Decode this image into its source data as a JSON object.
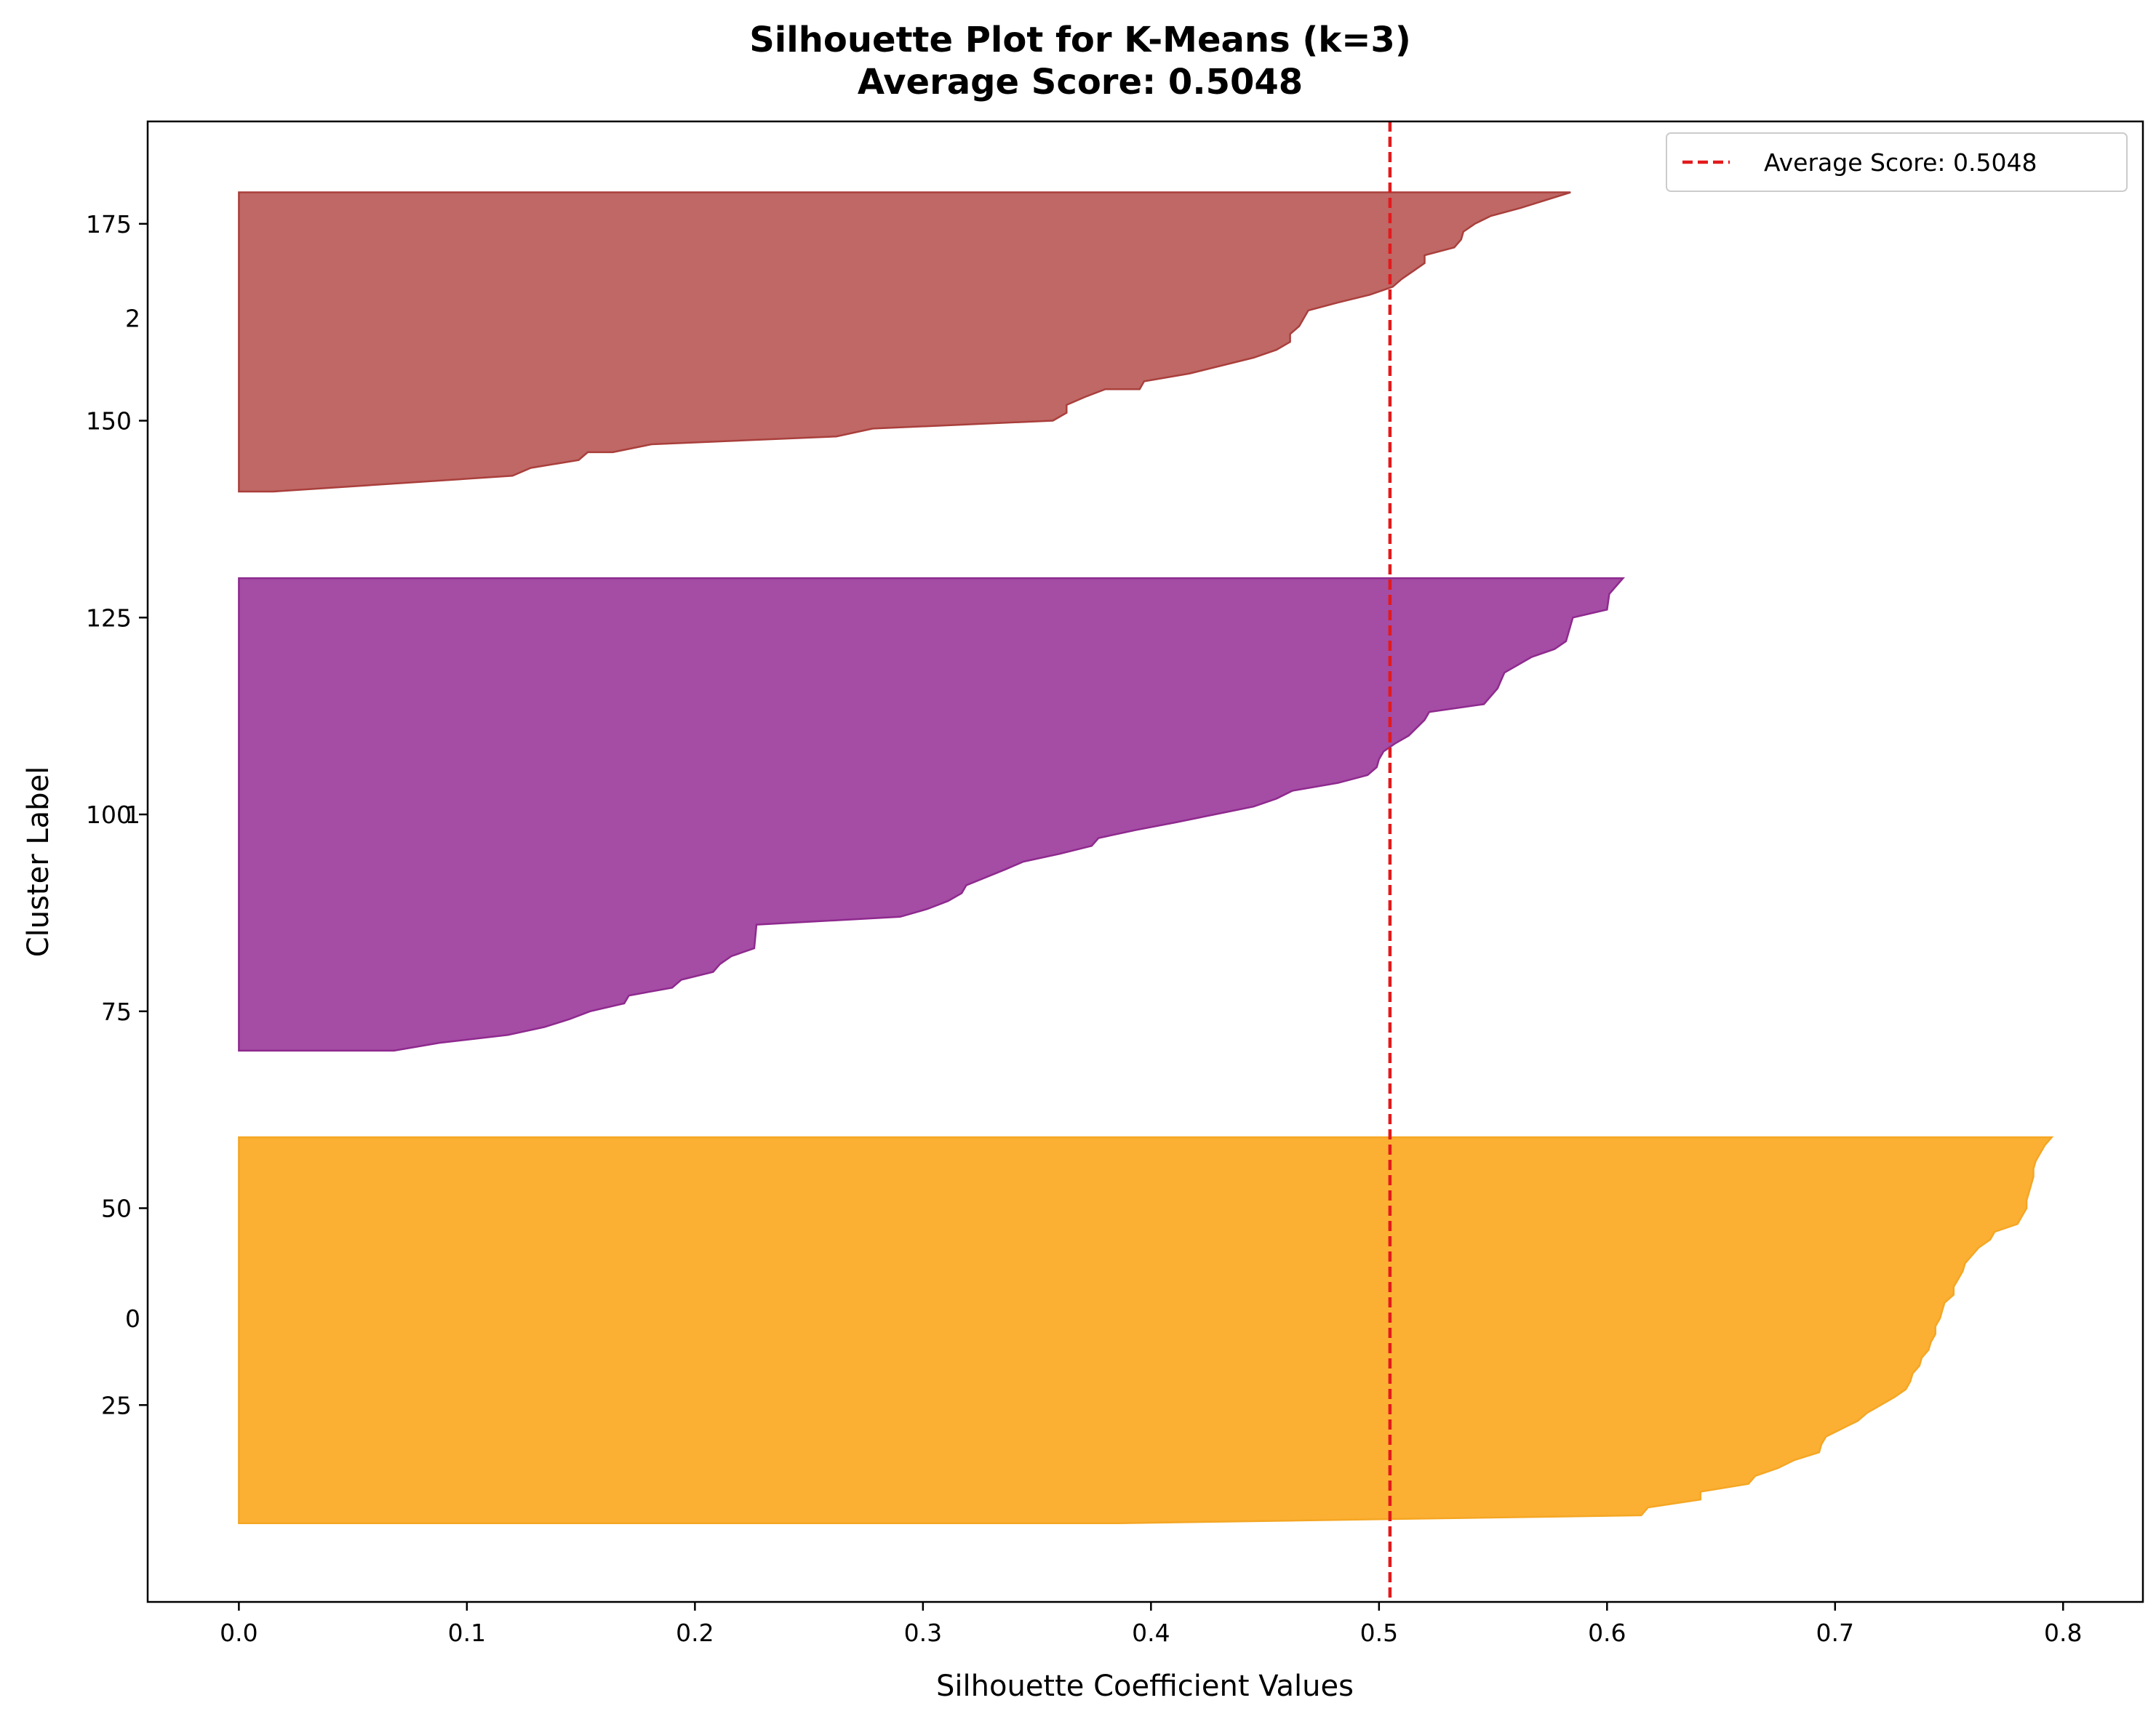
{
  "chart_data": {
    "type": "area",
    "title": "Silhouette Plot for K-Means (k=3)",
    "subtitle": "Average Score: 0.5048",
    "xlabel": "Silhouette Coefficient Values",
    "ylabel": "Cluster Label",
    "xlim": [
      -0.04,
      0.835
    ],
    "ylim": [
      0,
      188
    ],
    "xticks": [
      0.0,
      0.1,
      0.2,
      0.3,
      0.4,
      0.5,
      0.6,
      0.7,
      0.8
    ],
    "xtick_labels": [
      "0.0",
      "0.1",
      "0.2",
      "0.3",
      "0.4",
      "0.5",
      "0.6",
      "0.7",
      "0.8"
    ],
    "yticks": [
      25,
      50,
      75,
      100,
      125,
      150,
      175
    ],
    "ytick_labels": [
      "25",
      "50",
      "75",
      "100",
      "125",
      "150",
      "175"
    ],
    "average_score": 0.5048,
    "average_line_color": "#e31a1c",
    "legend": {
      "label": "Average Score: 0.5048",
      "position": "top-right"
    },
    "grid": false,
    "clusters": [
      {
        "label": "0",
        "label_y": 36,
        "y_start": 10,
        "y_end": 59,
        "color": "#fbb034",
        "edge": "#f5a623",
        "points": [
          [
            0.386,
            10
          ],
          [
            0.615,
            11
          ],
          [
            0.618,
            12
          ],
          [
            0.641,
            13
          ],
          [
            0.641,
            14
          ],
          [
            0.662,
            15
          ],
          [
            0.665,
            16
          ],
          [
            0.675,
            17
          ],
          [
            0.682,
            18
          ],
          [
            0.693,
            19
          ],
          [
            0.694,
            20
          ],
          [
            0.696,
            21
          ],
          [
            0.703,
            22
          ],
          [
            0.71,
            23
          ],
          [
            0.714,
            24
          ],
          [
            0.72,
            25
          ],
          [
            0.726,
            26
          ],
          [
            0.731,
            27
          ],
          [
            0.733,
            28
          ],
          [
            0.734,
            29
          ],
          [
            0.737,
            30
          ],
          [
            0.738,
            31
          ],
          [
            0.741,
            32
          ],
          [
            0.742,
            33
          ],
          [
            0.744,
            34
          ],
          [
            0.744,
            35
          ],
          [
            0.746,
            36
          ],
          [
            0.747,
            37
          ],
          [
            0.748,
            38
          ],
          [
            0.752,
            39
          ],
          [
            0.752,
            40
          ],
          [
            0.754,
            41
          ],
          [
            0.756,
            42
          ],
          [
            0.757,
            43
          ],
          [
            0.76,
            44
          ],
          [
            0.763,
            45
          ],
          [
            0.768,
            46
          ],
          [
            0.77,
            47
          ],
          [
            0.78,
            48
          ],
          [
            0.782,
            49
          ],
          [
            0.784,
            50
          ],
          [
            0.784,
            51
          ],
          [
            0.785,
            52
          ],
          [
            0.786,
            53
          ],
          [
            0.787,
            54
          ],
          [
            0.787,
            55
          ],
          [
            0.788,
            56
          ],
          [
            0.79,
            57
          ],
          [
            0.792,
            58
          ],
          [
            0.795,
            59
          ]
        ]
      },
      {
        "label": "1",
        "label_y": 100,
        "y_start": 70,
        "y_end": 130,
        "color": "#a54ca5",
        "edge": "#8e2a8e",
        "points": [
          [
            0.068,
            70
          ],
          [
            0.088,
            71
          ],
          [
            0.118,
            72
          ],
          [
            0.134,
            73
          ],
          [
            0.145,
            74
          ],
          [
            0.154,
            75
          ],
          [
            0.169,
            76
          ],
          [
            0.171,
            77
          ],
          [
            0.19,
            78
          ],
          [
            0.194,
            79
          ],
          [
            0.208,
            80
          ],
          [
            0.211,
            81
          ],
          [
            0.216,
            82
          ],
          [
            0.226,
            83
          ],
          [
            0.227,
            86
          ],
          [
            0.29,
            87
          ],
          [
            0.302,
            88
          ],
          [
            0.311,
            89
          ],
          [
            0.317,
            90
          ],
          [
            0.319,
            91
          ],
          [
            0.336,
            93
          ],
          [
            0.344,
            94
          ],
          [
            0.36,
            95
          ],
          [
            0.374,
            96
          ],
          [
            0.377,
            97
          ],
          [
            0.393,
            98
          ],
          [
            0.411,
            99
          ],
          [
            0.428,
            100
          ],
          [
            0.445,
            101
          ],
          [
            0.455,
            102
          ],
          [
            0.462,
            103
          ],
          [
            0.482,
            104
          ],
          [
            0.495,
            105
          ],
          [
            0.499,
            106
          ],
          [
            0.5,
            107
          ],
          [
            0.502,
            108
          ],
          [
            0.507,
            109
          ],
          [
            0.513,
            110
          ],
          [
            0.52,
            112
          ],
          [
            0.522,
            113
          ],
          [
            0.546,
            114
          ],
          [
            0.552,
            116
          ],
          [
            0.555,
            118
          ],
          [
            0.567,
            120
          ],
          [
            0.577,
            121
          ],
          [
            0.582,
            122
          ],
          [
            0.585,
            125
          ],
          [
            0.6,
            126
          ],
          [
            0.601,
            128
          ],
          [
            0.607,
            130
          ]
        ]
      },
      {
        "label": "2",
        "label_y": 163,
        "y_start": 141,
        "y_end": 179,
        "color": "#bf6866",
        "edge": "#a93f3c",
        "points": [
          [
            0.015,
            141
          ],
          [
            0.12,
            143
          ],
          [
            0.128,
            144
          ],
          [
            0.149,
            145
          ],
          [
            0.153,
            146
          ],
          [
            0.164,
            146
          ],
          [
            0.181,
            147
          ],
          [
            0.262,
            148
          ],
          [
            0.278,
            149
          ],
          [
            0.357,
            150
          ],
          [
            0.363,
            151
          ],
          [
            0.363,
            152
          ],
          [
            0.371,
            153
          ],
          [
            0.38,
            154
          ],
          [
            0.395,
            154
          ],
          [
            0.397,
            155
          ],
          [
            0.417,
            156
          ],
          [
            0.445,
            158
          ],
          [
            0.455,
            159
          ],
          [
            0.461,
            160
          ],
          [
            0.461,
            161
          ],
          [
            0.465,
            162
          ],
          [
            0.469,
            164
          ],
          [
            0.482,
            165
          ],
          [
            0.496,
            166
          ],
          [
            0.506,
            167
          ],
          [
            0.51,
            168
          ],
          [
            0.515,
            169
          ],
          [
            0.52,
            170
          ],
          [
            0.52,
            171
          ],
          [
            0.533,
            172
          ],
          [
            0.536,
            173
          ],
          [
            0.537,
            174
          ],
          [
            0.542,
            175
          ],
          [
            0.549,
            176
          ],
          [
            0.562,
            177
          ],
          [
            0.584,
            179
          ]
        ]
      }
    ]
  }
}
